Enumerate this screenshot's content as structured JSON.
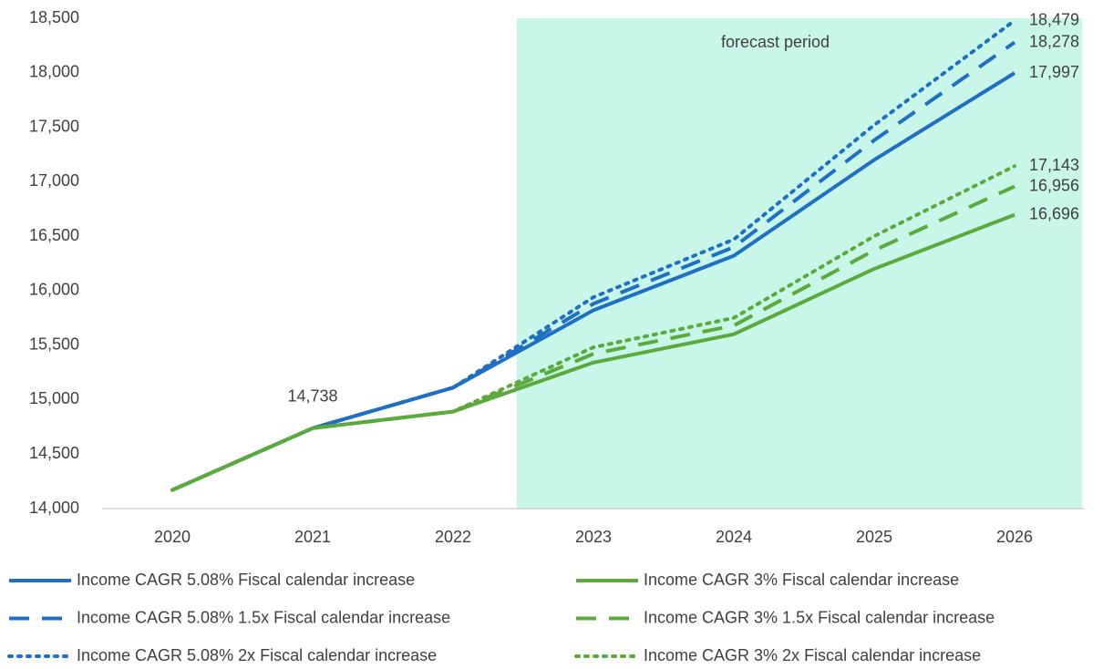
{
  "chart_data": {
    "type": "line",
    "categories": [
      "2020",
      "2021",
      "2022",
      "2023",
      "2024",
      "2025",
      "2026"
    ],
    "ylim": [
      14000,
      18500
    ],
    "yticks": [
      {
        "value": 14000,
        "label": "14,000"
      },
      {
        "value": 14500,
        "label": "14,500"
      },
      {
        "value": 15000,
        "label": "15,000"
      },
      {
        "value": 15500,
        "label": "15,500"
      },
      {
        "value": 16000,
        "label": "16,000"
      },
      {
        "value": 16500,
        "label": "16,500"
      },
      {
        "value": 17000,
        "label": "17,000"
      },
      {
        "value": 17500,
        "label": "17,500"
      },
      {
        "value": 18000,
        "label": "18,000"
      },
      {
        "value": 18500,
        "label": "18,500"
      }
    ],
    "grid": false,
    "annotation": {
      "text": "forecast period",
      "from_category": "2023",
      "color": "#c8f7e9"
    },
    "series": [
      {
        "name": "Income CAGR 5.08% Fiscal calendar increase",
        "color": "#1f6fc5",
        "dash": "solid",
        "values": [
          14170,
          14738,
          15110,
          15820,
          16320,
          17200,
          17997
        ],
        "value_labels": [
          null,
          "14,738",
          null,
          null,
          null,
          null,
          "17,997"
        ]
      },
      {
        "name": "Income CAGR 5.08% 1.5x Fiscal calendar increase",
        "color": "#1f6fc5",
        "dash": "dashed",
        "values": [
          14170,
          14738,
          15110,
          15880,
          16400,
          17380,
          18278
        ],
        "value_labels": [
          null,
          null,
          null,
          null,
          null,
          null,
          "18,278"
        ]
      },
      {
        "name": "Income CAGR 5.08% 2x Fiscal calendar increase",
        "color": "#1f6fc5",
        "dash": "dotted",
        "values": [
          14170,
          14738,
          15110,
          15940,
          16470,
          17520,
          18479
        ],
        "value_labels": [
          null,
          null,
          null,
          null,
          null,
          null,
          "18,479"
        ]
      },
      {
        "name": "Income CAGR 3% Fiscal calendar increase",
        "color": "#5aaa3c",
        "dash": "solid",
        "values": [
          14170,
          14738,
          14890,
          15340,
          15600,
          16200,
          16696
        ],
        "value_labels": [
          null,
          null,
          null,
          null,
          null,
          null,
          "16,696"
        ]
      },
      {
        "name": "Income CAGR 3% 1.5x Fiscal calendar increase",
        "color": "#5aaa3c",
        "dash": "dashed",
        "values": [
          14170,
          14738,
          14890,
          15420,
          15680,
          16370,
          16956
        ],
        "value_labels": [
          null,
          null,
          null,
          null,
          null,
          null,
          "16,956"
        ]
      },
      {
        "name": "Income CAGR 3% 2x Fiscal calendar increase",
        "color": "#5aaa3c",
        "dash": "dotted",
        "values": [
          14170,
          14738,
          14890,
          15480,
          15750,
          16500,
          17143
        ],
        "value_labels": [
          null,
          null,
          null,
          null,
          null,
          null,
          "17,143"
        ]
      }
    ]
  }
}
